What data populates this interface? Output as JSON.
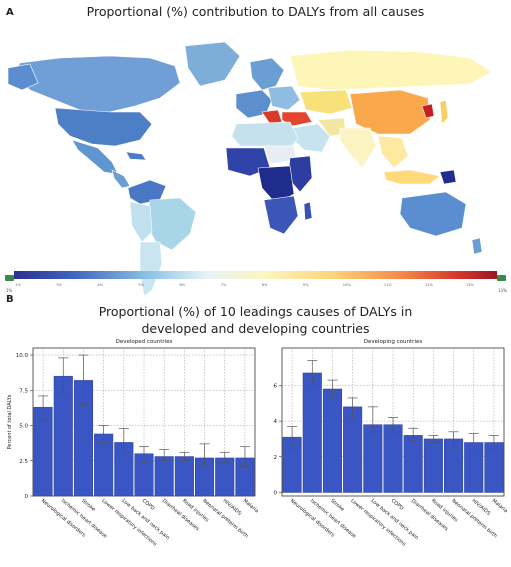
{
  "panel_a": {
    "letter": "A",
    "title": "Proportional (%) contribution to DALYs from all causes",
    "scale": {
      "tick_labels": [
        "1%",
        "3%",
        "4%",
        "5%",
        "6%",
        "7%",
        "8%",
        "9%",
        "10%",
        "11%",
        "12%",
        "13%"
      ],
      "end_left": "1%",
      "end_right": "13%"
    }
  },
  "panel_b": {
    "letter": "B",
    "title_line1": "Proportional (%) of 10 leadings causes of DALYs in",
    "title_line2": "developed and developing countries"
  },
  "colors": {
    "bar": "#3a55c4",
    "bar_edge": "#2a3f9a",
    "error": "#555555"
  },
  "chart_data": [
    {
      "type": "bar",
      "title": "Developed countries",
      "ylabel": "Percent of total DALYs",
      "ylim": [
        0,
        10.5
      ],
      "yticks": [
        0,
        2.5,
        5.0,
        7.5,
        10.0
      ],
      "ytick_labels": [
        "0",
        "2.5",
        "5.0",
        "7.5",
        "10.0"
      ],
      "grid": true,
      "categories": [
        "Neurological disorders",
        "Ischemic heart disease",
        "Stroke",
        "Lower respiratory infections",
        "Low back and neck pain",
        "COPD",
        "Diarrheal diseases",
        "Road injuries",
        "Neonatal preterm birth",
        "HIV/AIDS",
        "Malaria"
      ],
      "values": [
        6.3,
        8.5,
        8.2,
        4.4,
        3.8,
        3.0,
        2.8,
        2.8,
        2.7,
        2.7,
        2.7
      ],
      "err_low": [
        5.4,
        7.3,
        6.5,
        3.8,
        3.0,
        2.4,
        2.5,
        2.5,
        2.2,
        2.4,
        2.1
      ],
      "err_high": [
        7.1,
        9.8,
        10.0,
        5.0,
        4.8,
        3.5,
        3.3,
        3.1,
        3.7,
        3.1,
        3.5
      ]
    },
    {
      "type": "bar",
      "title": "Developing countries",
      "ylabel": "",
      "ylim": [
        -0.2,
        8.1
      ],
      "yticks": [
        0,
        2,
        4,
        6
      ],
      "ytick_labels": [
        "0",
        "2",
        "4",
        "6"
      ],
      "grid": true,
      "categories": [
        "Neurological disorders",
        "Ischemic heart disease",
        "Stroke",
        "Lower respiratory infections",
        "Low back and neck pain",
        "COPD",
        "Diarrheal diseases",
        "Road injuries",
        "Neonatal preterm birth",
        "HIV/AIDS",
        "Malaria"
      ],
      "values": [
        3.1,
        6.7,
        5.8,
        4.8,
        3.8,
        3.8,
        3.2,
        3.0,
        3.0,
        2.8,
        2.8
      ],
      "err_low": [
        2.4,
        6.0,
        5.3,
        4.1,
        3.3,
        3.3,
        2.9,
        2.8,
        2.5,
        2.3,
        2.4
      ],
      "err_high": [
        3.7,
        7.4,
        6.3,
        5.3,
        4.8,
        4.2,
        3.6,
        3.2,
        3.4,
        3.3,
        3.2
      ]
    }
  ]
}
